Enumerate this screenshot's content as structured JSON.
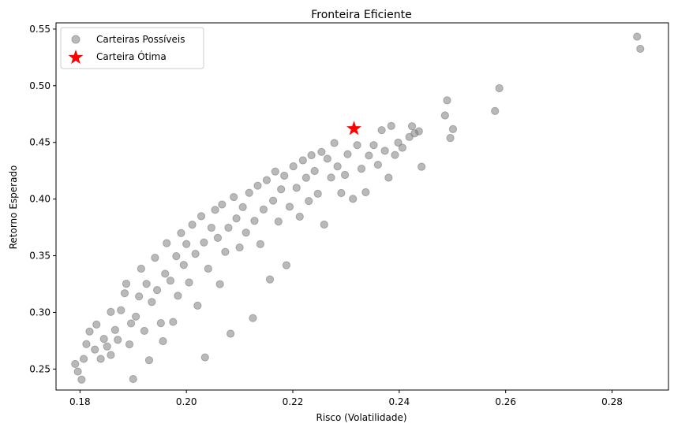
{
  "chart_data": {
    "type": "scatter",
    "title": "Fronteira Eficiente",
    "xlabel": "Risco (Volatilidade)",
    "ylabel": "Retorno Esperado",
    "xlim": [
      0.1755,
      0.2906
    ],
    "ylim": [
      0.2315,
      0.5555
    ],
    "xticks": [
      "0.18",
      "0.20",
      "0.22",
      "0.24",
      "0.26",
      "0.28"
    ],
    "yticks": [
      "0.25",
      "0.30",
      "0.35",
      "0.40",
      "0.45",
      "0.50",
      "0.55"
    ],
    "legend": {
      "position": "top-left"
    },
    "grid": false,
    "series": [
      {
        "name": "Carteiras Possíveis",
        "marker": "circle",
        "color": "#808080",
        "points": [
          [
            0.1791,
            0.2545
          ],
          [
            0.1796,
            0.2478
          ],
          [
            0.1803,
            0.2407
          ],
          [
            0.1807,
            0.259
          ],
          [
            0.1812,
            0.272
          ],
          [
            0.1818,
            0.2831
          ],
          [
            0.1828,
            0.2672
          ],
          [
            0.1831,
            0.2893
          ],
          [
            0.1839,
            0.259
          ],
          [
            0.1845,
            0.2766
          ],
          [
            0.1851,
            0.2699
          ],
          [
            0.1858,
            0.2624
          ],
          [
            0.1858,
            0.3004
          ],
          [
            0.1866,
            0.2845
          ],
          [
            0.1871,
            0.2758
          ],
          [
            0.1877,
            0.3019
          ],
          [
            0.1884,
            0.3169
          ],
          [
            0.1887,
            0.3253
          ],
          [
            0.1893,
            0.2718
          ],
          [
            0.1896,
            0.2903
          ],
          [
            0.19,
            0.2412
          ],
          [
            0.1905,
            0.2963
          ],
          [
            0.1911,
            0.3141
          ],
          [
            0.1915,
            0.3386
          ],
          [
            0.1921,
            0.2837
          ],
          [
            0.1925,
            0.3252
          ],
          [
            0.193,
            0.2578
          ],
          [
            0.1935,
            0.3092
          ],
          [
            0.1941,
            0.3482
          ],
          [
            0.1945,
            0.3197
          ],
          [
            0.1952,
            0.2905
          ],
          [
            0.1956,
            0.2746
          ],
          [
            0.196,
            0.3341
          ],
          [
            0.1963,
            0.3611
          ],
          [
            0.197,
            0.328
          ],
          [
            0.1975,
            0.2916
          ],
          [
            0.1981,
            0.3496
          ],
          [
            0.1984,
            0.3147
          ],
          [
            0.199,
            0.37
          ],
          [
            0.1995,
            0.3419
          ],
          [
            0.2,
            0.3603
          ],
          [
            0.2005,
            0.3264
          ],
          [
            0.2011,
            0.3774
          ],
          [
            0.2017,
            0.3517
          ],
          [
            0.2021,
            0.306
          ],
          [
            0.2028,
            0.3849
          ],
          [
            0.2033,
            0.3617
          ],
          [
            0.2035,
            0.2603
          ],
          [
            0.2041,
            0.3386
          ],
          [
            0.2047,
            0.3747
          ],
          [
            0.2054,
            0.3905
          ],
          [
            0.2059,
            0.3658
          ],
          [
            0.2063,
            0.3249
          ],
          [
            0.2067,
            0.3952
          ],
          [
            0.2073,
            0.3534
          ],
          [
            0.2079,
            0.3747
          ],
          [
            0.2083,
            0.2812
          ],
          [
            0.2089,
            0.4018
          ],
          [
            0.2094,
            0.3829
          ],
          [
            0.21,
            0.3573
          ],
          [
            0.2106,
            0.3929
          ],
          [
            0.2112,
            0.3704
          ],
          [
            0.2118,
            0.4055
          ],
          [
            0.2125,
            0.295
          ],
          [
            0.2128,
            0.3808
          ],
          [
            0.2134,
            0.4118
          ],
          [
            0.2139,
            0.3602
          ],
          [
            0.2145,
            0.3908
          ],
          [
            0.2151,
            0.4167
          ],
          [
            0.2157,
            0.3291
          ],
          [
            0.2163,
            0.3986
          ],
          [
            0.2167,
            0.4243
          ],
          [
            0.2173,
            0.3802
          ],
          [
            0.2178,
            0.4086
          ],
          [
            0.2184,
            0.4206
          ],
          [
            0.2188,
            0.3416
          ],
          [
            0.2194,
            0.3932
          ],
          [
            0.2201,
            0.4289
          ],
          [
            0.2207,
            0.4099
          ],
          [
            0.2213,
            0.3845
          ],
          [
            0.2219,
            0.4342
          ],
          [
            0.2225,
            0.4188
          ],
          [
            0.223,
            0.3983
          ],
          [
            0.2235,
            0.4387
          ],
          [
            0.2241,
            0.4248
          ],
          [
            0.2247,
            0.4047
          ],
          [
            0.2254,
            0.4416
          ],
          [
            0.2259,
            0.3775
          ],
          [
            0.2265,
            0.4356
          ],
          [
            0.2272,
            0.419
          ],
          [
            0.2278,
            0.4495
          ],
          [
            0.2284,
            0.4288
          ],
          [
            0.2291,
            0.4053
          ],
          [
            0.2298,
            0.4213
          ],
          [
            0.2303,
            0.4396
          ],
          [
            0.2313,
            0.4002
          ],
          [
            0.2321,
            0.4476
          ],
          [
            0.2329,
            0.4268
          ],
          [
            0.2337,
            0.406
          ],
          [
            0.2343,
            0.4384
          ],
          [
            0.2352,
            0.4476
          ],
          [
            0.236,
            0.4303
          ],
          [
            0.2367,
            0.4608
          ],
          [
            0.2373,
            0.4426
          ],
          [
            0.238,
            0.4189
          ],
          [
            0.2385,
            0.4645
          ],
          [
            0.2392,
            0.4389
          ],
          [
            0.2398,
            0.4498
          ],
          [
            0.2406,
            0.4453
          ],
          [
            0.2419,
            0.4548
          ],
          [
            0.2424,
            0.4643
          ],
          [
            0.2429,
            0.458
          ],
          [
            0.2437,
            0.4598
          ],
          [
            0.2442,
            0.4285
          ],
          [
            0.2486,
            0.4738
          ],
          [
            0.249,
            0.4871
          ],
          [
            0.2496,
            0.4539
          ],
          [
            0.2501,
            0.4617
          ],
          [
            0.258,
            0.4777
          ],
          [
            0.2588,
            0.4978
          ],
          [
            0.2847,
            0.5433
          ],
          [
            0.2853,
            0.5326
          ]
        ]
      },
      {
        "name": "Carteira Ótima",
        "marker": "star",
        "color": "#ff0000",
        "points": [
          [
            0.2315,
            0.4621
          ]
        ]
      }
    ]
  }
}
